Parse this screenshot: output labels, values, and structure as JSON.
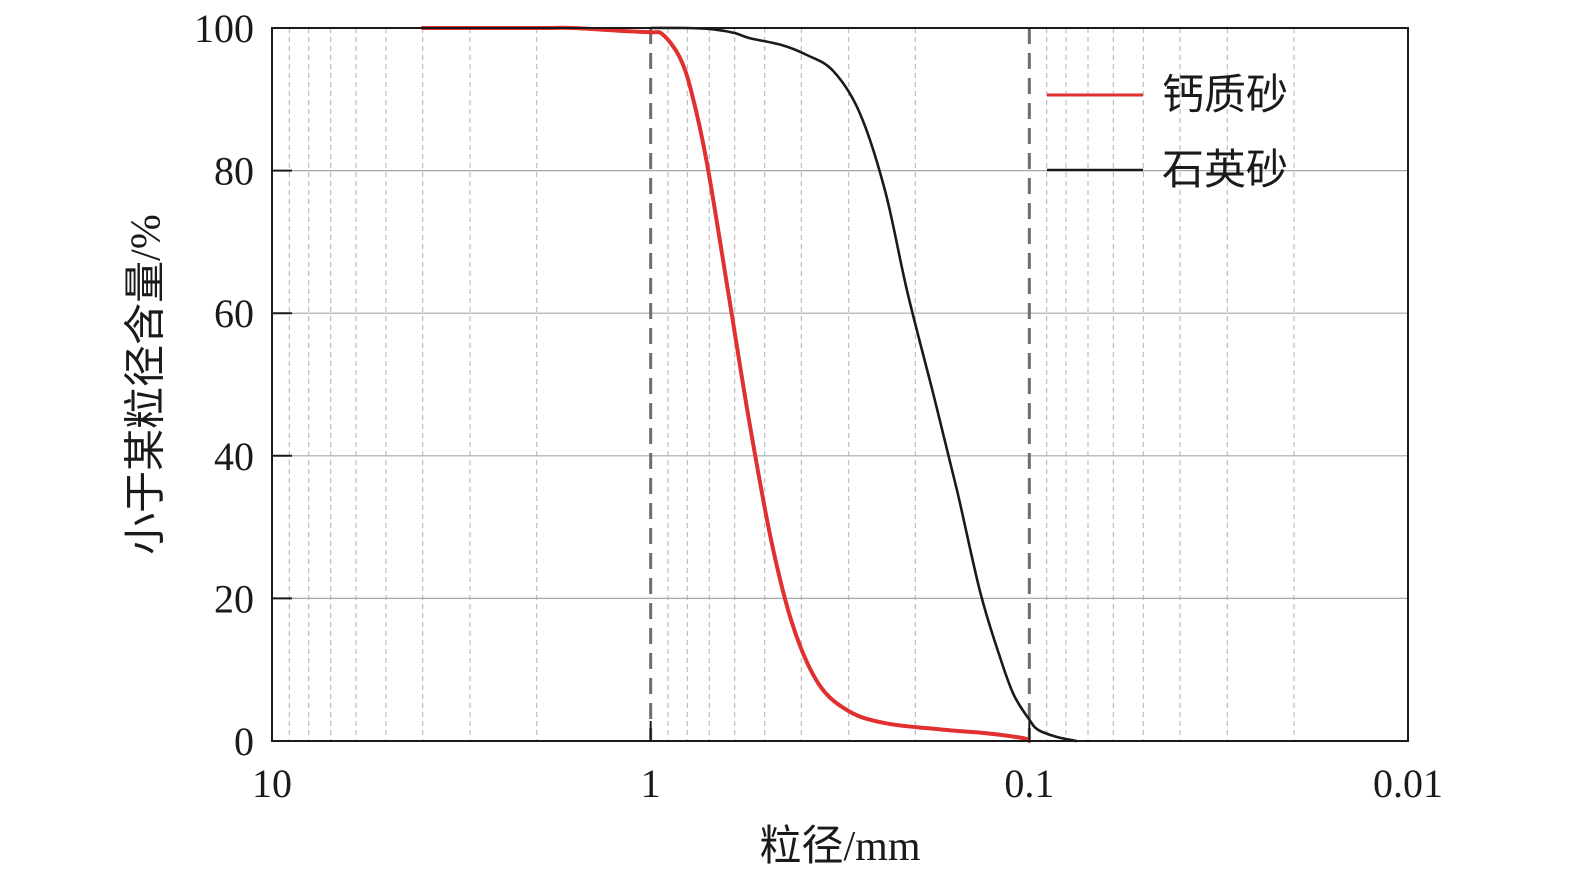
{
  "chart_data": {
    "type": "line",
    "x_scale": "log",
    "x_reversed": true,
    "xlim": [
      10,
      0.01
    ],
    "ylim": [
      0,
      100
    ],
    "x_ticks": [
      10,
      1,
      0.1,
      0.01
    ],
    "x_tick_labels": [
      "10",
      "1",
      "0.1",
      "0.01"
    ],
    "y_ticks": [
      0,
      20,
      40,
      60,
      80,
      100
    ],
    "y_tick_labels": [
      "0",
      "20",
      "40",
      "60",
      "80",
      "100"
    ],
    "reference_lines_x": [
      1,
      0.1
    ],
    "xlabel": "粒径/mm",
    "ylabel": "小于某粒径含量/%",
    "grid": true,
    "legend_position": "top-right",
    "series": [
      {
        "name": "钙质砂",
        "color": "#e03030",
        "points": [
          [
            4.0,
            100
          ],
          [
            2.0,
            100
          ],
          [
            1.6,
            100
          ],
          [
            1.2,
            99.6
          ],
          [
            1.0,
            99.4
          ],
          [
            0.93,
            99.1
          ],
          [
            0.84,
            96
          ],
          [
            0.78,
            91
          ],
          [
            0.71,
            81
          ],
          [
            0.62,
            62
          ],
          [
            0.55,
            45
          ],
          [
            0.48,
            28
          ],
          [
            0.42,
            16
          ],
          [
            0.36,
            8
          ],
          [
            0.3,
            4.2
          ],
          [
            0.24,
            2.5
          ],
          [
            0.17,
            1.6
          ],
          [
            0.13,
            1.1
          ],
          [
            0.104,
            0.4
          ],
          [
            0.1,
            0
          ]
        ]
      },
      {
        "name": "石英砂",
        "color": "#1a1a1a",
        "points": [
          [
            1.0,
            100
          ],
          [
            0.8,
            100
          ],
          [
            0.68,
            99.8
          ],
          [
            0.6,
            99.3
          ],
          [
            0.55,
            98.6
          ],
          [
            0.45,
            97.6
          ],
          [
            0.39,
            96.3
          ],
          [
            0.33,
            94
          ],
          [
            0.28,
            88
          ],
          [
            0.24,
            77
          ],
          [
            0.21,
            63
          ],
          [
            0.18,
            49
          ],
          [
            0.155,
            35
          ],
          [
            0.135,
            21
          ],
          [
            0.12,
            12
          ],
          [
            0.11,
            6.5
          ],
          [
            0.1,
            3
          ],
          [
            0.095,
            1.6
          ],
          [
            0.085,
            0.6
          ],
          [
            0.075,
            0
          ]
        ]
      }
    ]
  }
}
